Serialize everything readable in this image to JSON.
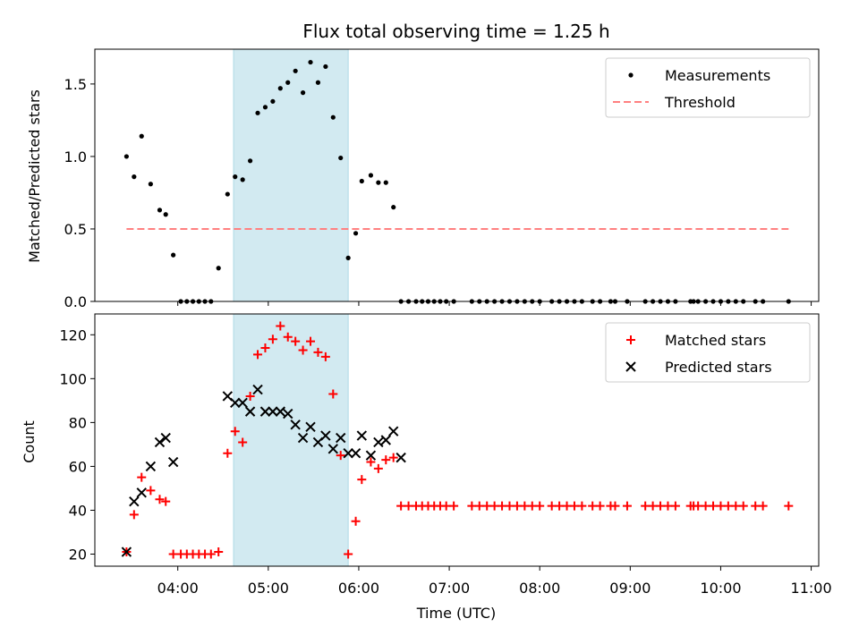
{
  "chart_data": {
    "title": "Flux total observing time = 1.25 h",
    "xlabel": "Time (UTC)",
    "xlim": [
      "03:05",
      "11:05"
    ],
    "x_ticks": [
      "04:00",
      "05:00",
      "06:00",
      "07:00",
      "08:00",
      "09:00",
      "10:00",
      "11:00"
    ],
    "highlight_span": [
      "04:37",
      "05:53"
    ],
    "colors": {
      "measurements": "#000000",
      "threshold": "#ff8080",
      "matched": "#ff0000",
      "predicted": "#000000",
      "span": "#add8e6"
    },
    "panels": [
      {
        "type": "scatter",
        "ylabel": "Matched/Predicted stars",
        "ylim": [
          0,
          1.74
        ],
        "y_ticks": [
          "0.0",
          "0.5",
          "1.0",
          "1.5"
        ],
        "legend": "top-right",
        "series": [
          {
            "name": "Measurements",
            "marker": "dot",
            "x": [
              "03:26",
              "03:31",
              "03:36",
              "03:42",
              "03:48",
              "03:52",
              "03:57",
              "04:02",
              "04:06",
              "04:10",
              "04:14",
              "04:18",
              "04:22",
              "04:27",
              "04:33",
              "04:38",
              "04:43",
              "04:48",
              "04:53",
              "04:58",
              "05:03",
              "05:08",
              "05:13",
              "05:18",
              "05:23",
              "05:28",
              "05:33",
              "05:38",
              "05:43",
              "05:48",
              "05:53",
              "05:58",
              "06:02",
              "06:08",
              "06:13",
              "06:18",
              "06:23",
              "06:28",
              "06:33",
              "06:38",
              "06:42",
              "06:46",
              "06:50",
              "06:54",
              "06:58",
              "07:03",
              "07:15",
              "07:20",
              "07:25",
              "07:30",
              "07:35",
              "07:40",
              "07:45",
              "07:50",
              "07:55",
              "08:00",
              "08:08",
              "08:13",
              "08:18",
              "08:23",
              "08:28",
              "08:35",
              "08:40",
              "08:47",
              "08:50",
              "08:58",
              "09:10",
              "09:15",
              "09:20",
              "09:25",
              "09:30",
              "09:40",
              "09:42",
              "09:45",
              "09:50",
              "09:55",
              "10:00",
              "10:05",
              "10:10",
              "10:15",
              "10:23",
              "10:28",
              "10:45"
            ],
            "y": [
              1.0,
              0.86,
              1.14,
              0.81,
              0.63,
              0.6,
              0.32,
              0.0,
              0.0,
              0.0,
              0.0,
              0.0,
              0.0,
              0.23,
              0.74,
              0.86,
              0.84,
              0.97,
              1.3,
              1.34,
              1.38,
              1.47,
              1.51,
              1.59,
              1.44,
              1.65,
              1.51,
              1.62,
              1.27,
              0.99,
              0.3,
              0.47,
              0.83,
              0.87,
              0.82,
              0.82,
              0.65,
              0.0,
              0.0,
              0.0,
              0.0,
              0.0,
              0.0,
              0.0,
              0.0,
              0.0,
              0.0,
              0.0,
              0.0,
              0.0,
              0.0,
              0.0,
              0.0,
              0.0,
              0.0,
              0.0,
              0.0,
              0.0,
              0.0,
              0.0,
              0.0,
              0.0,
              0.0,
              0.0,
              0.0,
              0.0,
              0.0,
              0.0,
              0.0,
              0.0,
              0.0,
              0.0,
              0.0,
              0.0,
              0.0,
              0.0,
              0.0,
              0.0,
              0.0,
              0.0,
              0.0,
              0.0,
              0.0
            ]
          },
          {
            "name": "Threshold",
            "marker": "dashed-line",
            "x": [
              "03:26",
              "10:45"
            ],
            "y": [
              0.5,
              0.5
            ]
          }
        ]
      },
      {
        "type": "scatter",
        "ylabel": "Count",
        "ylim": [
          14.5,
          129.5
        ],
        "y_ticks": [
          "20",
          "40",
          "60",
          "80",
          "100",
          "120"
        ],
        "legend": "top-right",
        "series": [
          {
            "name": "Matched stars",
            "marker": "plus",
            "x": [
              "03:26",
              "03:31",
              "03:36",
              "03:42",
              "03:48",
              "03:52",
              "03:57",
              "04:02",
              "04:06",
              "04:10",
              "04:14",
              "04:18",
              "04:22",
              "04:27",
              "04:33",
              "04:38",
              "04:43",
              "04:48",
              "04:53",
              "04:58",
              "05:03",
              "05:08",
              "05:13",
              "05:18",
              "05:23",
              "05:28",
              "05:33",
              "05:38",
              "05:43",
              "05:48",
              "05:53",
              "05:58",
              "06:02",
              "06:08",
              "06:13",
              "06:18",
              "06:23",
              "06:28",
              "06:33",
              "06:38",
              "06:42",
              "06:46",
              "06:50",
              "06:54",
              "06:58",
              "07:03",
              "07:15",
              "07:20",
              "07:25",
              "07:30",
              "07:35",
              "07:40",
              "07:45",
              "07:50",
              "07:55",
              "08:00",
              "08:08",
              "08:13",
              "08:18",
              "08:23",
              "08:28",
              "08:35",
              "08:40",
              "08:47",
              "08:50",
              "08:58",
              "09:10",
              "09:15",
              "09:20",
              "09:25",
              "09:30",
              "09:40",
              "09:42",
              "09:45",
              "09:50",
              "09:55",
              "10:00",
              "10:05",
              "10:10",
              "10:15",
              "10:23",
              "10:28",
              "10:45"
            ],
            "y": [
              21,
              38,
              55,
              49,
              45,
              44,
              20,
              20,
              20,
              20,
              20,
              20,
              20,
              21,
              66,
              76,
              71,
              92,
              111,
              114,
              118,
              124,
              119,
              117,
              113,
              117,
              112,
              110,
              93,
              65,
              20,
              35,
              54,
              62,
              59,
              63,
              64,
              42,
              42,
              42,
              42,
              42,
              42,
              42,
              42,
              42,
              42,
              42,
              42,
              42,
              42,
              42,
              42,
              42,
              42,
              42,
              42,
              42,
              42,
              42,
              42,
              42,
              42,
              42,
              42,
              42,
              42,
              42,
              42,
              42,
              42,
              42,
              42,
              42,
              42,
              42,
              42,
              42,
              42,
              42,
              42,
              42,
              42
            ]
          },
          {
            "name": "Predicted stars",
            "marker": "x",
            "x": [
              "03:26",
              "03:31",
              "03:36",
              "03:42",
              "03:48",
              "03:52",
              "03:57",
              "04:33",
              "04:38",
              "04:43",
              "04:48",
              "04:53",
              "04:58",
              "05:03",
              "05:08",
              "05:13",
              "05:18",
              "05:23",
              "05:28",
              "05:33",
              "05:38",
              "05:43",
              "05:48",
              "05:53",
              "05:58",
              "06:02",
              "06:08",
              "06:13",
              "06:18",
              "06:23",
              "06:28"
            ],
            "y": [
              21,
              44,
              48,
              60,
              71,
              73,
              62,
              92,
              89,
              89,
              85,
              95,
              85,
              85,
              85,
              84,
              79,
              73,
              78,
              71,
              74,
              68,
              73,
              66,
              66,
              74,
              65,
              71,
              72,
              76,
              64
            ]
          }
        ]
      }
    ]
  }
}
